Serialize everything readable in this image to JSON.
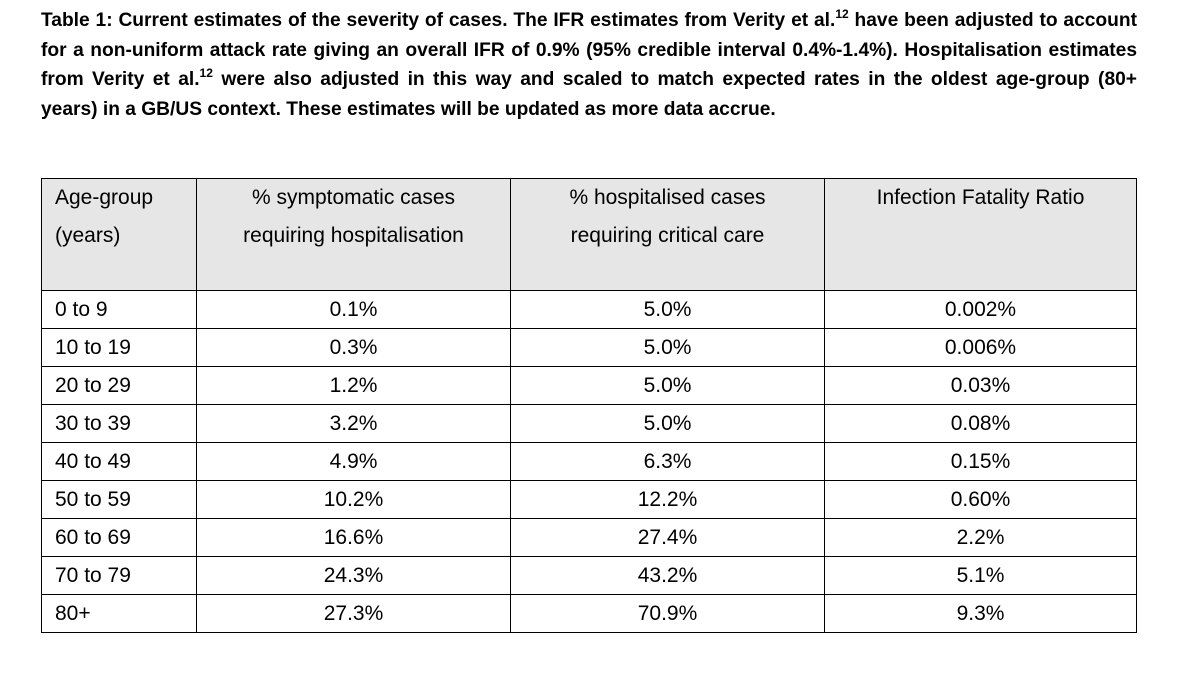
{
  "caption": {
    "part1": "Table 1: Current estimates of the severity of cases. The IFR estimates from Verity et al.",
    "ref1": "12",
    "part2": " have been adjusted to account for a non-uniform attack rate giving an overall IFR of 0.9% (95% credible interval 0.4%-1.4%). Hospitalisation estimates from Verity et al.",
    "ref2": "12",
    "part3": " were also adjusted in this way and scaled to match expected rates in the oldest age-group (80+ years) in a GB/US context. These estimates will be updated as more data accrue."
  },
  "table": {
    "headers": {
      "age_line1": "Age-group",
      "age_line2": "(years)",
      "hosp_line1": "% symptomatic cases",
      "hosp_line2": "requiring hospitalisation",
      "crit_line1": "% hospitalised cases",
      "crit_line2": "requiring critical care",
      "ifr_line1": "Infection Fatality Ratio"
    },
    "rows": [
      {
        "age": "0 to 9",
        "hosp": "0.1%",
        "crit": "5.0%",
        "ifr": "0.002%"
      },
      {
        "age": "10 to 19",
        "hosp": "0.3%",
        "crit": "5.0%",
        "ifr": "0.006%"
      },
      {
        "age": "20 to 29",
        "hosp": "1.2%",
        "crit": "5.0%",
        "ifr": "0.03%"
      },
      {
        "age": "30 to 39",
        "hosp": "3.2%",
        "crit": "5.0%",
        "ifr": "0.08%"
      },
      {
        "age": "40 to 49",
        "hosp": "4.9%",
        "crit": "6.3%",
        "ifr": "0.15%"
      },
      {
        "age": "50 to 59",
        "hosp": "10.2%",
        "crit": "12.2%",
        "ifr": "0.60%"
      },
      {
        "age": "60 to 69",
        "hosp": "16.6%",
        "crit": "27.4%",
        "ifr": "2.2%"
      },
      {
        "age": "70 to 79",
        "hosp": "24.3%",
        "crit": "43.2%",
        "ifr": "5.1%"
      },
      {
        "age": "80+",
        "hosp": "27.3%",
        "crit": "70.9%",
        "ifr": "9.3%"
      }
    ]
  }
}
